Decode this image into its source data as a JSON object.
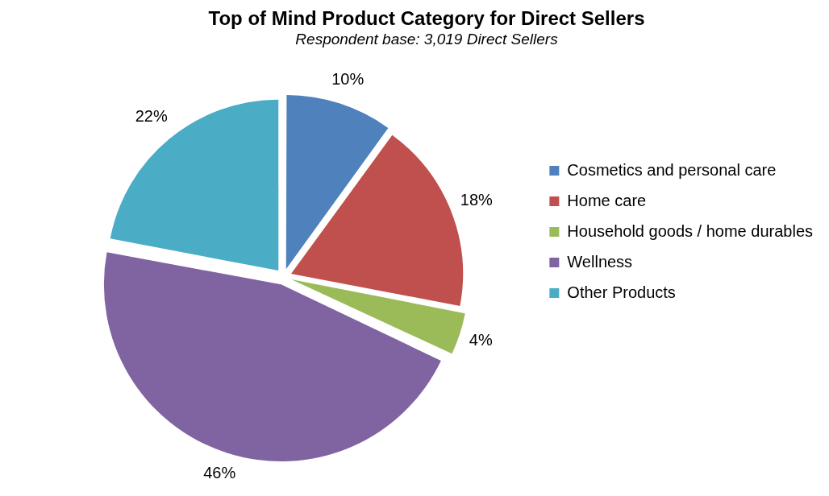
{
  "chart_data": {
    "type": "pie",
    "title": "Top of Mind Product Category for Direct Sellers",
    "subtitle": "Respondent base: 3,019 Direct Sellers",
    "categories": [
      "Cosmetics and personal care",
      "Home care",
      "Household goods / home durables",
      "Wellness",
      "Other Products"
    ],
    "values": [
      10,
      18,
      4,
      46,
      22
    ],
    "colors": [
      "#4f81bd",
      "#c0504d",
      "#9bbb59",
      "#8064a2",
      "#4bacc6"
    ],
    "value_labels": [
      "10%",
      "18%",
      "4%",
      "46%",
      "22%"
    ],
    "legend": "right"
  }
}
